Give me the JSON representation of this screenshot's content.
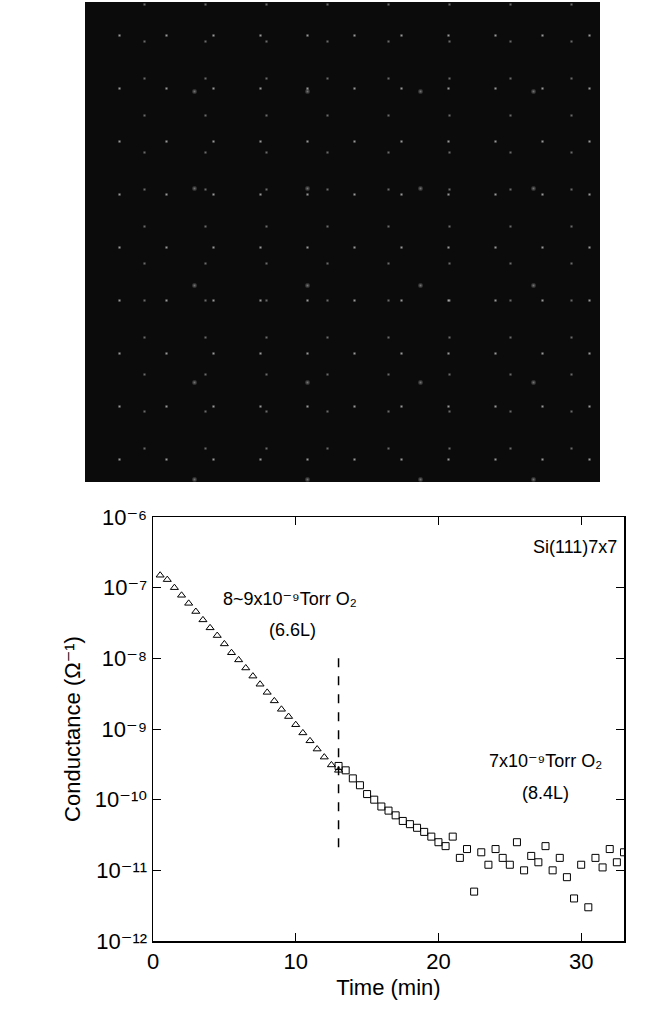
{
  "chart_data": {
    "type": "scatter",
    "log": "y",
    "grid": false,
    "x_label": "Time (min)",
    "y_label": "Conductance (Ω⁻¹)",
    "xlim": [
      0,
      33
    ],
    "xticks": [
      0,
      10,
      20,
      30
    ],
    "ylim": [
      1e-12,
      1e-06
    ],
    "yticks": [
      {
        "value": 1e-12,
        "label": "10⁻¹²"
      },
      {
        "value": 1e-11,
        "label": "10⁻¹¹"
      },
      {
        "value": 1e-10,
        "label": "10⁻¹⁰"
      },
      {
        "value": 1e-09,
        "label": "10⁻⁹"
      },
      {
        "value": 1e-08,
        "label": "10⁻⁸"
      },
      {
        "value": 1e-07,
        "label": "10⁻⁷"
      },
      {
        "value": 1e-06,
        "label": "10⁻⁶"
      }
    ],
    "series": [
      {
        "color": "#000000",
        "marker": "triangle",
        "x": [
          0.5,
          1,
          1.5,
          2,
          2.5,
          3,
          3.5,
          4,
          4.5,
          5,
          5.5,
          6,
          6.5,
          7,
          7.5,
          8,
          8.5,
          9,
          9.5,
          10,
          10.5,
          11,
          11.5,
          12,
          12.5,
          13
        ],
        "values": [
          1.5e-07,
          1.3e-07,
          1e-07,
          7.8e-08,
          6e-08,
          4.6e-08,
          3.5e-08,
          2.7e-08,
          2.1e-08,
          1.6e-08,
          1.2e-08,
          9.5e-09,
          7.3e-09,
          5.6e-09,
          4.3e-09,
          3.3e-09,
          2.5e-09,
          1.9e-09,
          1.5e-09,
          1.15e-09,
          8.8e-10,
          6.8e-10,
          5.2e-10,
          4e-10,
          3.1e-10,
          2.6e-10
        ]
      },
      {
        "color": "#000000",
        "marker": "square",
        "x": [
          13,
          13.5,
          14,
          14.5,
          15,
          15.5,
          16,
          16.5,
          17,
          17.5,
          18,
          18.5,
          19,
          19.5,
          20,
          20.5,
          21,
          21.5,
          22,
          22.5,
          23,
          23.5,
          24,
          24.5,
          25,
          25.5,
          26,
          26.5,
          27,
          27.5,
          28,
          28.5,
          29,
          29.5,
          30,
          30.5,
          31,
          31.5,
          32,
          32.5,
          33
        ],
        "values": [
          3e-10,
          2.6e-10,
          2e-10,
          1.6e-10,
          1.2e-10,
          1e-10,
          8e-11,
          7e-11,
          6e-11,
          5e-11,
          4.5e-11,
          4e-11,
          3.5e-11,
          3e-11,
          2.5e-11,
          2.2e-11,
          3e-11,
          1.5e-11,
          2e-11,
          5e-12,
          1.8e-11,
          1.2e-11,
          2e-11,
          1.5e-11,
          1.2e-11,
          2.5e-11,
          1e-11,
          1.6e-11,
          1.3e-11,
          2.2e-11,
          1e-11,
          1.5e-11,
          8e-12,
          4e-12,
          1.2e-11,
          3e-12,
          1.5e-11,
          1.1e-11,
          2e-11,
          1.3e-11,
          1.8e-11
        ]
      }
    ],
    "dashed_line": {
      "x": 13,
      "y_from": 1e-08,
      "y_to": 1.7e-11
    },
    "annotations": [
      {
        "text": "8~9x10⁻⁹Torr O₂",
        "x": 9.6,
        "y": 7e-08
      },
      {
        "text": "(6.6L)",
        "x": 9.8,
        "y": 2.5e-08
      },
      {
        "text": "7x10⁻⁹Torr O₂",
        "x": 27.5,
        "y": 3.5e-10
      },
      {
        "text": "(8.4L)",
        "x": 27.5,
        "y": 1.25e-10
      },
      {
        "text": "Si(111)7x7",
        "x": 29.6,
        "y": 3.8e-07
      }
    ]
  }
}
